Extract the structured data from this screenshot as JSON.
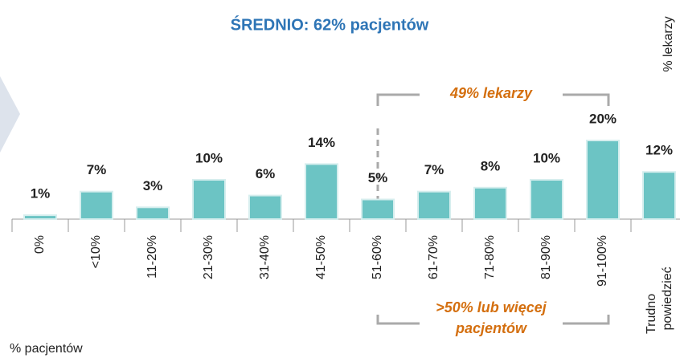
{
  "chart_data": {
    "type": "bar",
    "title": "ŚREDNIO: 62% pacjentów",
    "ylabel": "% lekarzy",
    "xlabel": "% pacjentów",
    "categories": [
      "0%",
      "<10%",
      "11-20%",
      "21-30%",
      "31-40%",
      "41-50%",
      "51-60%",
      "61-70%",
      "71-80%",
      "81-90%",
      "91-100%",
      "Trudno powiedzieć"
    ],
    "values": [
      1,
      7,
      3,
      10,
      6,
      14,
      5,
      7,
      8,
      10,
      20,
      12
    ],
    "value_labels": [
      "1%",
      "7%",
      "3%",
      "10%",
      "6%",
      "14%",
      "5%",
      "7%",
      "8%",
      "10%",
      "20%",
      "12%"
    ],
    "color": "#6cc4c4",
    "annotations": [
      {
        "text": "49% lekarzy"
      },
      {
        "lines": [
          ">50% lub więcej",
          "pacjentów"
        ]
      }
    ]
  }
}
